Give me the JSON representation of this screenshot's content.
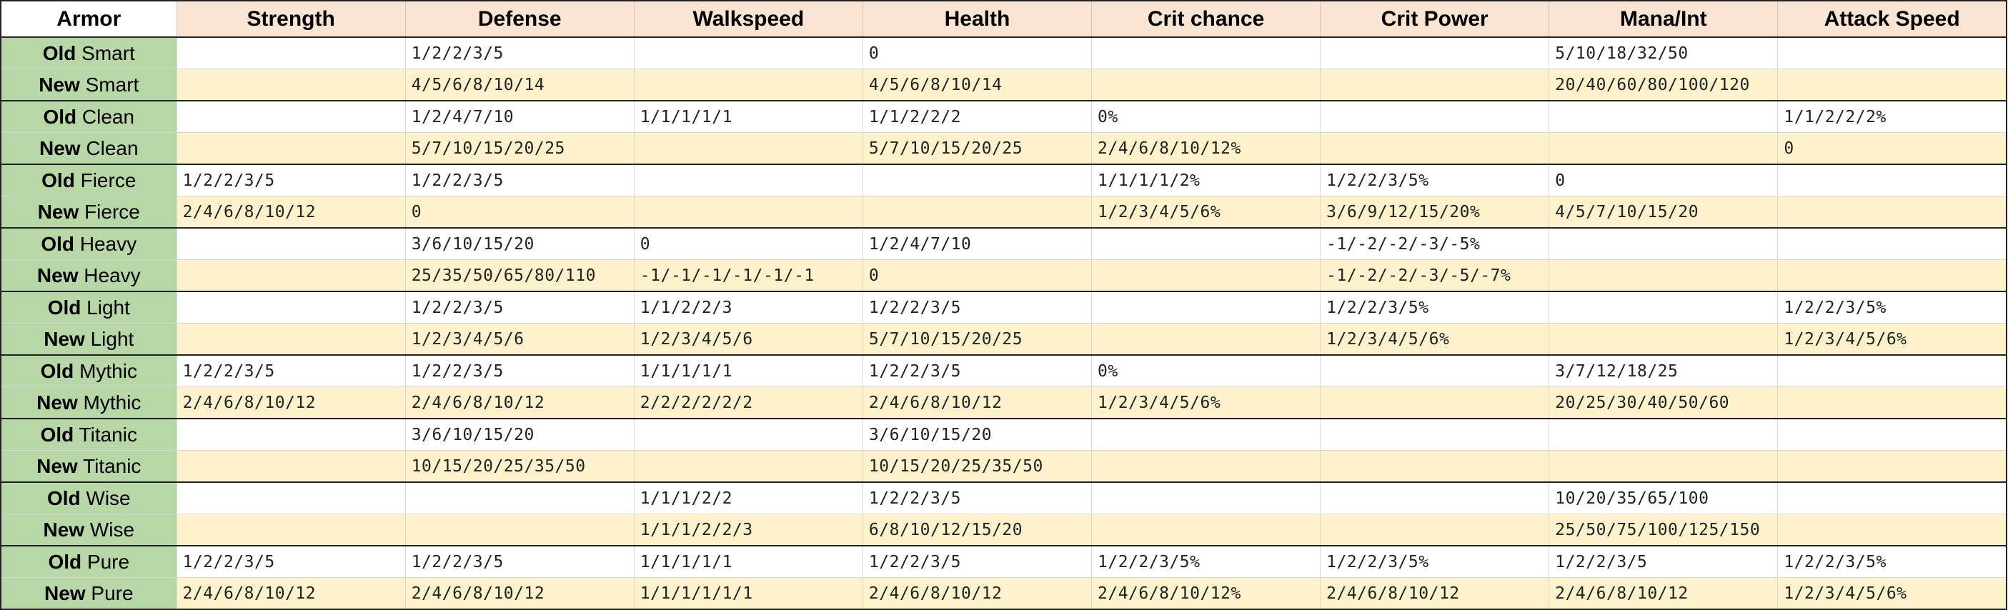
{
  "header": {
    "armor": "Armor",
    "columns": [
      "Strength",
      "Defense",
      "Walkspeed",
      "Health",
      "Crit chance",
      "Crit Power",
      "Mana/Int",
      "Attack Speed"
    ]
  },
  "rows": [
    {
      "tag": "Old",
      "name": "Smart",
      "values": [
        "",
        "1/2/2/3/5",
        "",
        "0",
        "",
        "",
        "5/10/18/32/50",
        ""
      ]
    },
    {
      "tag": "New",
      "name": "Smart",
      "values": [
        "",
        "4/5/6/8/10/14",
        "",
        "4/5/6/8/10/14",
        "",
        "",
        "20/40/60/80/100/120",
        ""
      ]
    },
    {
      "tag": "Old",
      "name": "Clean",
      "values": [
        "",
        "1/2/4/7/10",
        "1/1/1/1/1",
        "1/1/2/2/2",
        "0%",
        "",
        "",
        "1/1/2/2/2%"
      ]
    },
    {
      "tag": "New",
      "name": "Clean",
      "values": [
        "",
        "5/7/10/15/20/25",
        "",
        "5/7/10/15/20/25",
        "2/4/6/8/10/12%",
        "",
        "",
        "0"
      ]
    },
    {
      "tag": "Old",
      "name": "Fierce",
      "values": [
        "1/2/2/3/5",
        "1/2/2/3/5",
        "",
        "",
        "1/1/1/1/2%",
        "1/2/2/3/5%",
        "0",
        ""
      ]
    },
    {
      "tag": "New",
      "name": "Fierce",
      "values": [
        "2/4/6/8/10/12",
        "0",
        "",
        "",
        "1/2/3/4/5/6%",
        "3/6/9/12/15/20%",
        "4/5/7/10/15/20",
        ""
      ]
    },
    {
      "tag": "Old",
      "name": "Heavy",
      "values": [
        "",
        "3/6/10/15/20",
        "0",
        "1/2/4/7/10",
        "",
        "-1/-2/-2/-3/-5%",
        "",
        ""
      ]
    },
    {
      "tag": "New",
      "name": "Heavy",
      "values": [
        "",
        "25/35/50/65/80/110",
        "-1/-1/-1/-1/-1/-1",
        "0",
        "",
        "-1/-2/-2/-3/-5/-7%",
        "",
        ""
      ]
    },
    {
      "tag": "Old",
      "name": "Light",
      "values": [
        "",
        "1/2/2/3/5",
        "1/1/2/2/3",
        "1/2/2/3/5",
        "",
        "1/2/2/3/5%",
        "",
        "1/2/2/3/5%"
      ]
    },
    {
      "tag": "New",
      "name": "Light",
      "values": [
        "",
        "1/2/3/4/5/6",
        "1/2/3/4/5/6",
        "5/7/10/15/20/25",
        "",
        "1/2/3/4/5/6%",
        "",
        "1/2/3/4/5/6%"
      ]
    },
    {
      "tag": "Old",
      "name": "Mythic",
      "values": [
        "1/2/2/3/5",
        "1/2/2/3/5",
        "1/1/1/1/1",
        "1/2/2/3/5",
        "0%",
        "",
        "3/7/12/18/25",
        ""
      ]
    },
    {
      "tag": "New",
      "name": "Mythic",
      "values": [
        "2/4/6/8/10/12",
        "2/4/6/8/10/12",
        "2/2/2/2/2/2",
        "2/4/6/8/10/12",
        "1/2/3/4/5/6%",
        "",
        "20/25/30/40/50/60",
        ""
      ]
    },
    {
      "tag": "Old",
      "name": "Titanic",
      "values": [
        "",
        "3/6/10/15/20",
        "",
        "3/6/10/15/20",
        "",
        "",
        "",
        ""
      ]
    },
    {
      "tag": "New",
      "name": "Titanic",
      "values": [
        "",
        "10/15/20/25/35/50",
        "",
        "10/15/20/25/35/50",
        "",
        "",
        "",
        ""
      ]
    },
    {
      "tag": "Old",
      "name": "Wise",
      "values": [
        "",
        "",
        "1/1/1/2/2",
        "1/2/2/3/5",
        "",
        "",
        "10/20/35/65/100",
        ""
      ]
    },
    {
      "tag": "New",
      "name": "Wise",
      "values": [
        "",
        "",
        "1/1/1/2/2/3",
        "6/8/10/12/15/20",
        "",
        "",
        "25/50/75/100/125/150",
        ""
      ]
    },
    {
      "tag": "Old",
      "name": "Pure",
      "values": [
        "1/2/2/3/5",
        "1/2/2/3/5",
        "1/1/1/1/1",
        "1/2/2/3/5",
        "1/2/2/3/5%",
        "1/2/2/3/5%",
        "1/2/2/3/5",
        "1/2/2/3/5%"
      ]
    },
    {
      "tag": "New",
      "name": "Pure",
      "values": [
        "2/4/6/8/10/12",
        "2/4/6/8/10/12",
        "1/1/1/1/1/1",
        "2/4/6/8/10/12",
        "2/4/6/8/10/12%",
        "2/4/6/8/10/12",
        "2/4/6/8/10/12",
        "1/2/3/4/5/6%"
      ]
    }
  ]
}
